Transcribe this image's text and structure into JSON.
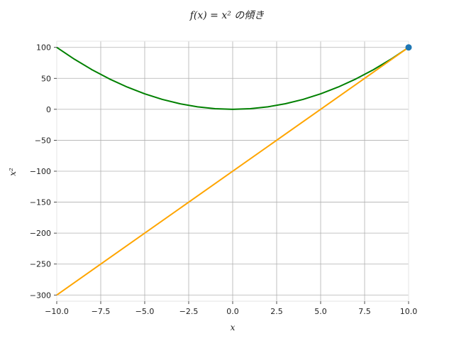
{
  "chart_data": {
    "type": "line",
    "title": "f(x) = x² の傾き",
    "xlabel": "x",
    "ylabel": "x²",
    "xlim": [
      -10,
      10
    ],
    "ylim": [
      -310,
      110
    ],
    "xticks": [
      -10,
      -7.5,
      -5,
      -2.5,
      0,
      2.5,
      5,
      7.5,
      10
    ],
    "yticks": [
      -300,
      -250,
      -200,
      -150,
      -100,
      -50,
      0,
      50,
      100
    ],
    "xtick_labels": [
      "−10.0",
      "−7.5",
      "−5.0",
      "−2.5",
      "0.0",
      "2.5",
      "5.0",
      "7.5",
      "10.0"
    ],
    "ytick_labels": [
      "−300",
      "−250",
      "−200",
      "−150",
      "−100",
      "−50",
      "0",
      "50",
      "100"
    ],
    "grid": true,
    "series": [
      {
        "color": "#008000",
        "x": [
          -10,
          -9,
          -8,
          -7,
          -6,
          -5,
          -4,
          -3,
          -2,
          -1,
          0,
          1,
          2,
          3,
          4,
          5,
          6,
          7,
          8,
          9,
          10
        ],
        "y": [
          100,
          81,
          64,
          49,
          36,
          25,
          16,
          9,
          4,
          1,
          0,
          1,
          4,
          9,
          16,
          25,
          36,
          49,
          64,
          81,
          100
        ]
      },
      {
        "color": "#ffa500",
        "x": [
          -10,
          10
        ],
        "y": [
          -300,
          100
        ]
      }
    ],
    "points": [
      {
        "x": 10,
        "y": 100,
        "color": "#1f77b4"
      }
    ]
  }
}
